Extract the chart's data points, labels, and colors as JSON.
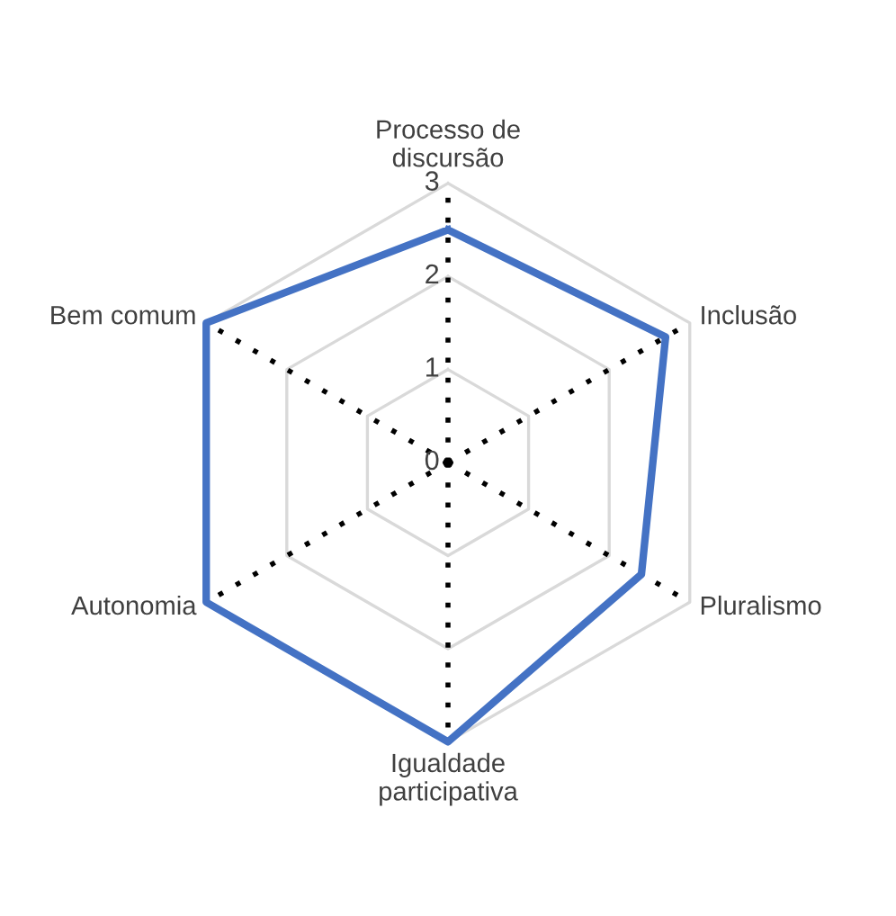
{
  "chart_data": {
    "type": "radar",
    "categories": [
      "Processo de\ndiscursão",
      "Inclusão",
      "Pluralismo",
      "Igualdade\nparticipativa",
      "Autonomia",
      "Bem comum"
    ],
    "series": [
      {
        "color": "#4472c4",
        "values": [
          2.5,
          2.7,
          2.4,
          3,
          3,
          3
        ]
      }
    ],
    "ylim": [
      0,
      3
    ],
    "yticks": [
      0,
      1,
      2,
      3
    ],
    "grid": true,
    "marker": "none",
    "line_style": "solid"
  }
}
